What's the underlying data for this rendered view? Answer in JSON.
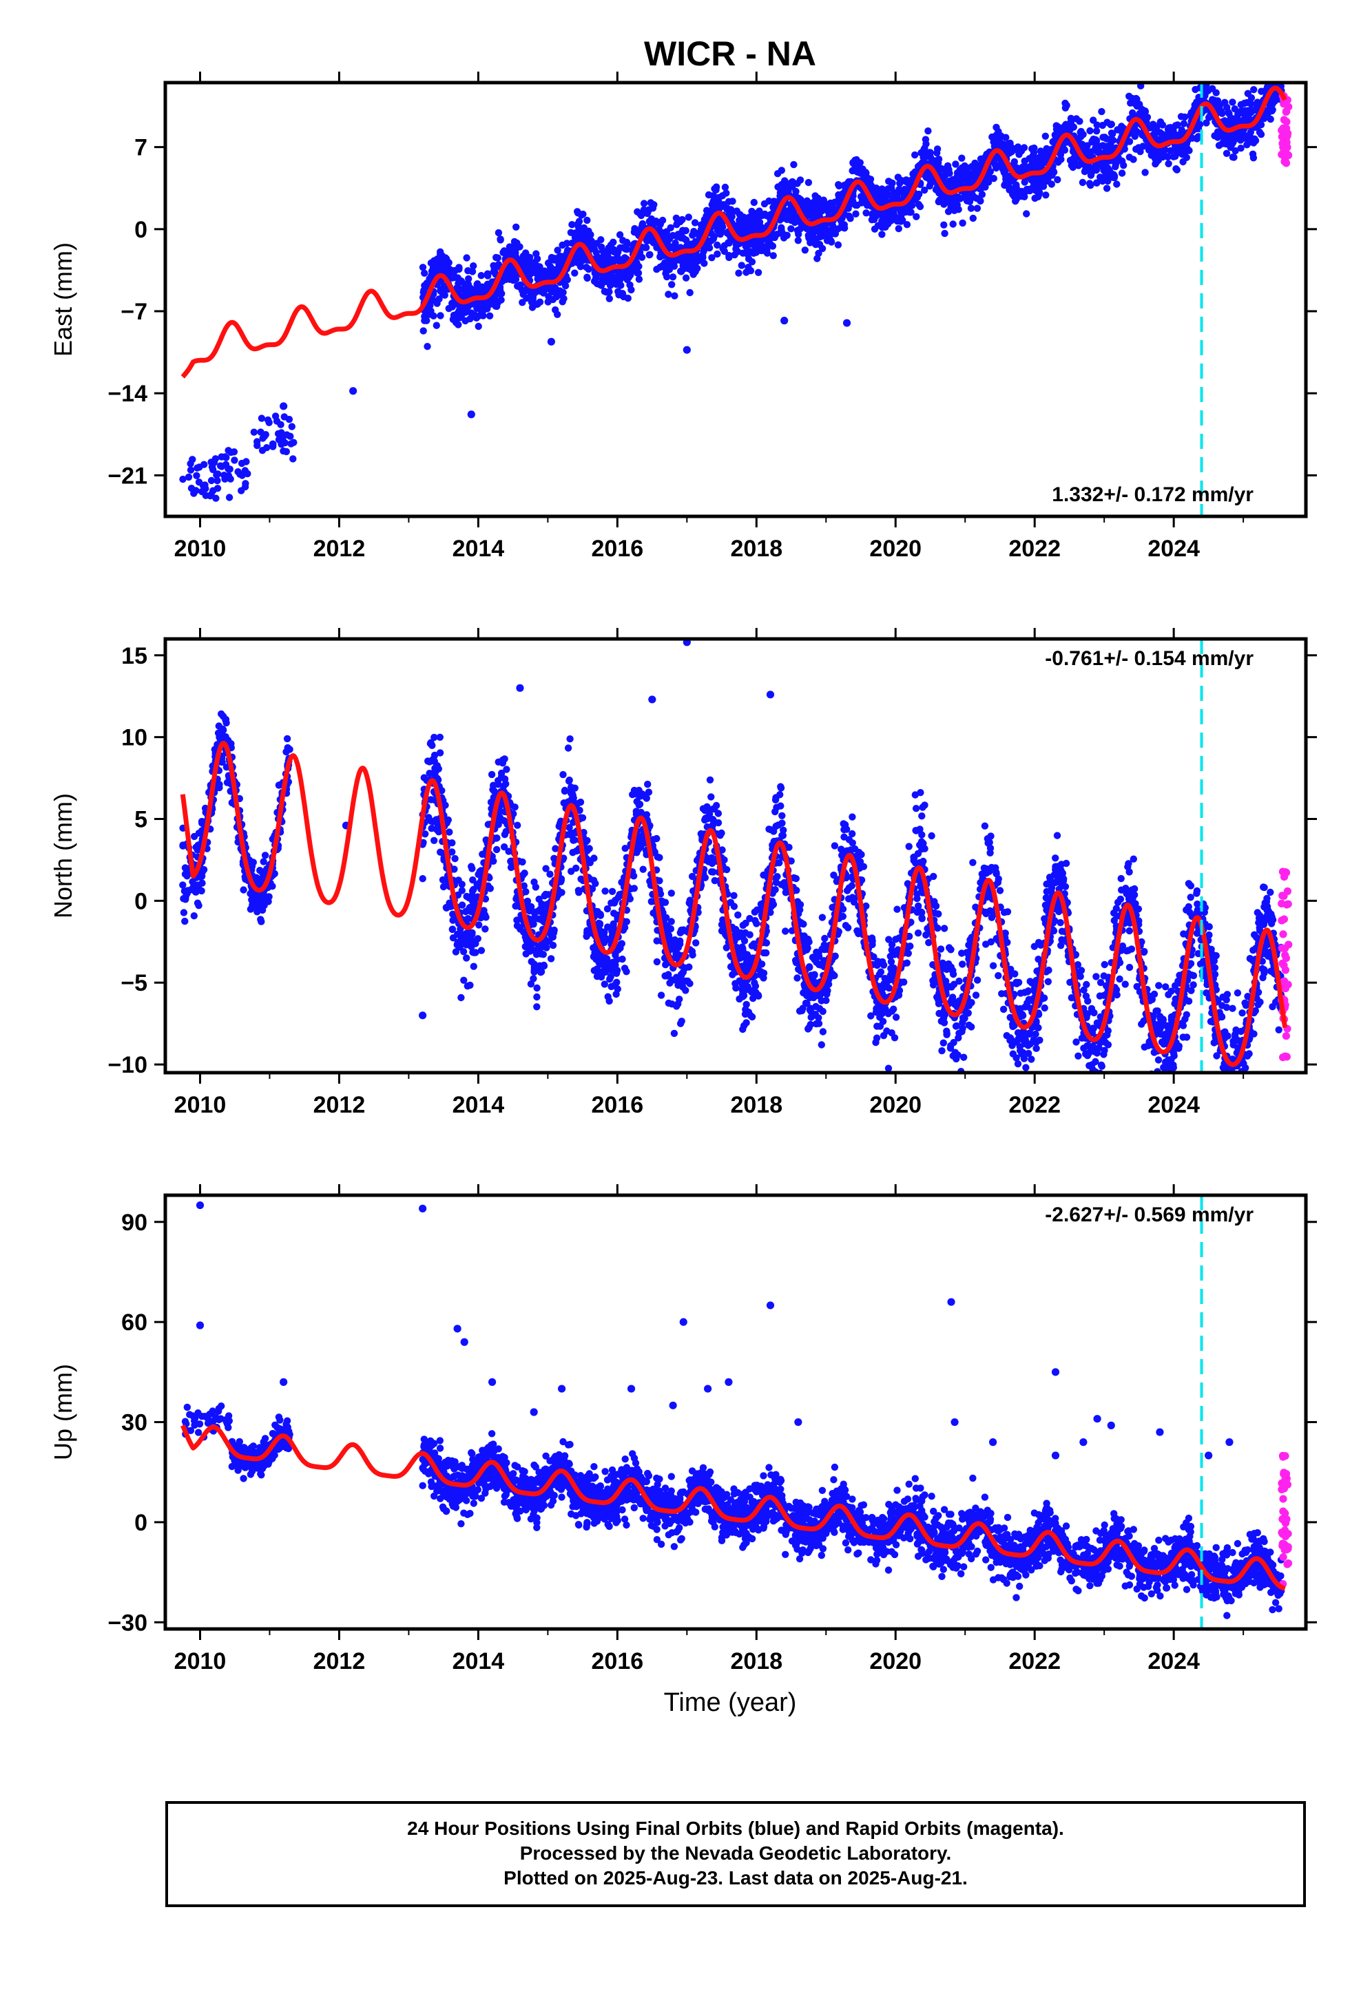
{
  "title": "WICR - NA",
  "xlabel": "Time (year)",
  "colors": {
    "final_orbits": "#1010ff",
    "rapid_orbits": "#ff22ee",
    "model_fit": "#ff1010",
    "event_line": "#00e5ee"
  },
  "event_line_year": 2024.4,
  "caption": [
    "24 Hour Positions Using Final Orbits (blue) and Rapid Orbits (magenta).",
    "Processed by the Nevada Geodetic Laboratory.",
    "Plotted on 2025-Aug-23. Last data on 2025-Aug-21."
  ],
  "chart_data": [
    {
      "type": "scatter",
      "component": "east",
      "ylabel": "East (mm)",
      "rate_label": "1.332+/- 0.172 mm/yr",
      "rate_position": "bottom-right",
      "xlim": [
        2009.5,
        2025.9
      ],
      "ylim": [
        -24.5,
        12.5
      ],
      "xticks": [
        2010,
        2012,
        2014,
        2016,
        2018,
        2020,
        2022,
        2024
      ],
      "yticks": [
        -21,
        -14,
        -7,
        0,
        7
      ],
      "ytick_labels": [
        "−21",
        "−14",
        "−7",
        "0",
        "7"
      ],
      "model_fit": {
        "offset": 0.3,
        "rate": 1.332,
        "ref_year": 2018.0,
        "annual_amp": 1.3,
        "semiannual_amp": 0.5,
        "phase": 0.45,
        "start_value": -12.6,
        "start_year": 2009.75
      },
      "final_orbits_segments": [
        {
          "x_start": 2009.75,
          "x_end": 2010.25,
          "center": -21.0,
          "spread": 2.0
        },
        {
          "x_start": 2010.25,
          "x_end": 2010.75,
          "center": -20.5,
          "spread": 1.8
        },
        {
          "x_start": 2010.75,
          "x_end": 2011.35,
          "center": -17.6,
          "spread": 1.6
        },
        {
          "x_start": 2013.2,
          "x_end": 2019.2,
          "center_mode": "fit",
          "spread": 2.2
        },
        {
          "x_start": 2019.2,
          "x_end": 2025.55,
          "center_mode": "fit",
          "spread": 2.0
        }
      ],
      "outliers": [
        [
          2013.9,
          -15.8
        ],
        [
          2011.2,
          -15.1
        ],
        [
          2012.2,
          -13.8
        ],
        [
          2015.05,
          -9.6
        ],
        [
          2017.0,
          -10.3
        ],
        [
          2019.3,
          -8.0
        ],
        [
          2018.4,
          -7.8
        ]
      ],
      "rapid_orbits": {
        "x_start": 2025.55,
        "x_end": 2025.65,
        "y_min": 5.5,
        "y_max": 11.5
      }
    },
    {
      "type": "scatter",
      "component": "north",
      "ylabel": "North (mm)",
      "rate_label": "-0.761+/- 0.154 mm/yr",
      "rate_position": "top-right",
      "xlim": [
        2009.5,
        2025.9
      ],
      "ylim": [
        -10.5,
        16.0
      ],
      "xticks": [
        2010,
        2012,
        2014,
        2016,
        2018,
        2020,
        2022,
        2024
      ],
      "yticks": [
        -10,
        -5,
        0,
        5,
        10,
        15
      ],
      "ytick_labels": [
        "−10",
        "−5",
        "0",
        "5",
        "10",
        "15"
      ],
      "model_fit": {
        "offset": -1.1,
        "rate": -0.761,
        "ref_year": 2018.0,
        "annual_amp": 4.3,
        "semiannual_amp": 0.6,
        "phase": 0.34,
        "start_value": 6.5,
        "start_year": 2009.75
      },
      "final_orbits_segments": [
        {
          "x_start": 2009.75,
          "x_end": 2010.45,
          "center_mode": "fit",
          "spread": 2.0
        },
        {
          "x_start": 2010.45,
          "x_end": 2011.3,
          "center_mode": "fit",
          "spread": 1.5
        },
        {
          "x_start": 2013.2,
          "x_end": 2025.55,
          "center_mode": "fit",
          "spread": 2.8
        }
      ],
      "outliers": [
        [
          2013.2,
          -7.0
        ],
        [
          2017.0,
          15.8
        ],
        [
          2018.2,
          12.6
        ],
        [
          2012.1,
          4.6
        ],
        [
          2016.5,
          12.3
        ],
        [
          2014.6,
          13.0
        ]
      ],
      "rapid_orbits": {
        "x_start": 2025.55,
        "x_end": 2025.65,
        "y_min": -10.0,
        "y_max": 1.8
      }
    },
    {
      "type": "scatter",
      "component": "up",
      "ylabel": "Up (mm)",
      "rate_label": "-2.627+/- 0.569 mm/yr",
      "rate_position": "top-right",
      "xlim": [
        2009.5,
        2025.9
      ],
      "ylim": [
        -32,
        98
      ],
      "xticks": [
        2010,
        2012,
        2014,
        2016,
        2018,
        2020,
        2022,
        2024
      ],
      "yticks": [
        -30,
        0,
        30,
        60,
        90
      ],
      "ytick_labels": [
        "−30",
        "0",
        "30",
        "60",
        "90"
      ],
      "model_fit": {
        "offset": 3.0,
        "rate": -2.627,
        "ref_year": 2018.0,
        "annual_amp": 4.0,
        "semiannual_amp": 1.0,
        "phase": 0.2,
        "start_value": 29.0,
        "start_year": 2009.75
      },
      "final_orbits_segments": [
        {
          "x_start": 2009.75,
          "x_end": 2010.45,
          "center": 30.0,
          "spread": 5.0
        },
        {
          "x_start": 2010.45,
          "x_end": 2011.3,
          "center_mode": "fit",
          "spread": 4.0
        },
        {
          "x_start": 2013.2,
          "x_end": 2025.55,
          "center_mode": "fit",
          "spread": 7.0
        }
      ],
      "outliers": [
        [
          2010.0,
          95.0
        ],
        [
          2013.2,
          94.0
        ],
        [
          2010.0,
          59.0
        ],
        [
          2013.7,
          58.0
        ],
        [
          2013.8,
          54.0
        ],
        [
          2014.2,
          42.0
        ],
        [
          2014.8,
          33.0
        ],
        [
          2015.2,
          40.0
        ],
        [
          2016.2,
          40.0
        ],
        [
          2016.8,
          35.0
        ],
        [
          2016.95,
          60.0
        ],
        [
          2017.3,
          40.0
        ],
        [
          2017.6,
          42.0
        ],
        [
          2018.2,
          65.0
        ],
        [
          2018.6,
          30.0
        ],
        [
          2020.8,
          66.0
        ],
        [
          2020.85,
          30.0
        ],
        [
          2021.4,
          24.0
        ],
        [
          2022.3,
          45.0
        ],
        [
          2022.3,
          20.0
        ],
        [
          2022.7,
          24.0
        ],
        [
          2022.9,
          31.0
        ],
        [
          2023.1,
          29.0
        ],
        [
          2023.8,
          27.0
        ],
        [
          2024.5,
          20.0
        ],
        [
          2024.8,
          24.0
        ],
        [
          2011.2,
          42.0
        ]
      ],
      "rapid_orbits": {
        "x_start": 2025.55,
        "x_end": 2025.65,
        "y_min": -20.0,
        "y_max": 20.0
      }
    }
  ]
}
